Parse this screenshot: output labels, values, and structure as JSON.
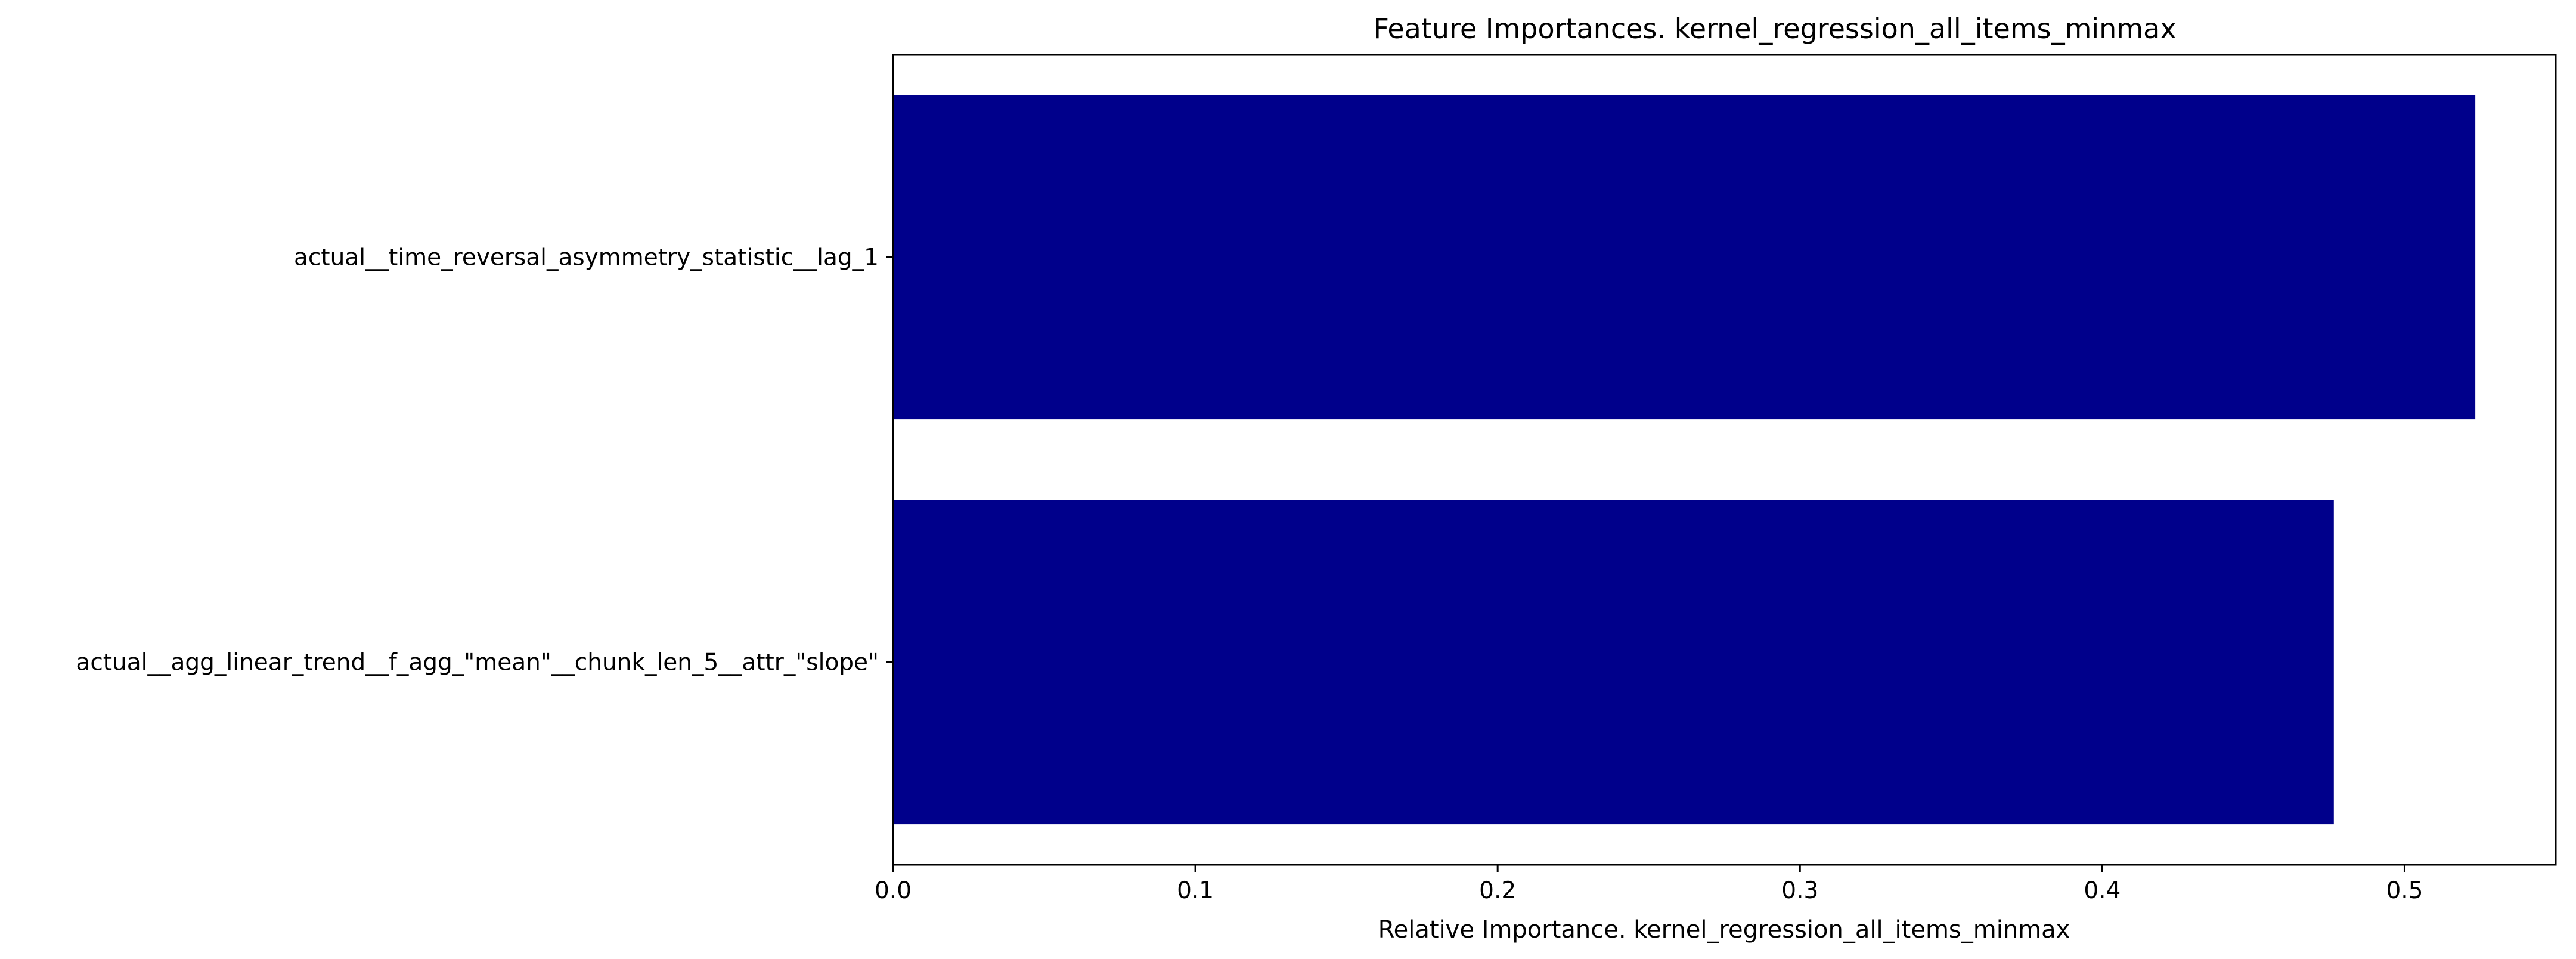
{
  "chart_data": {
    "type": "bar",
    "orientation": "horizontal",
    "title": "Feature Importances. kernel_regression_all_items_minmax",
    "xlabel": "Relative Importance. kernel_regression_all_items_minmax",
    "ylabel": "",
    "categories": [
      "actual__time_reversal_asymmetry_statistic__lag_1",
      "actual__agg_linear_trend__f_agg_\"mean\"__chunk_len_5__attr_\"slope\""
    ],
    "values": [
      0.5234,
      0.4766
    ],
    "xlim": [
      0.0,
      0.55
    ],
    "xticks": [
      0.0,
      0.1,
      0.2,
      0.3,
      0.4,
      0.5
    ],
    "xtick_labels": [
      "0.0",
      "0.1",
      "0.2",
      "0.3",
      "0.4",
      "0.5"
    ],
    "bar_color": "#00008b",
    "grid": false,
    "legend": false
  }
}
